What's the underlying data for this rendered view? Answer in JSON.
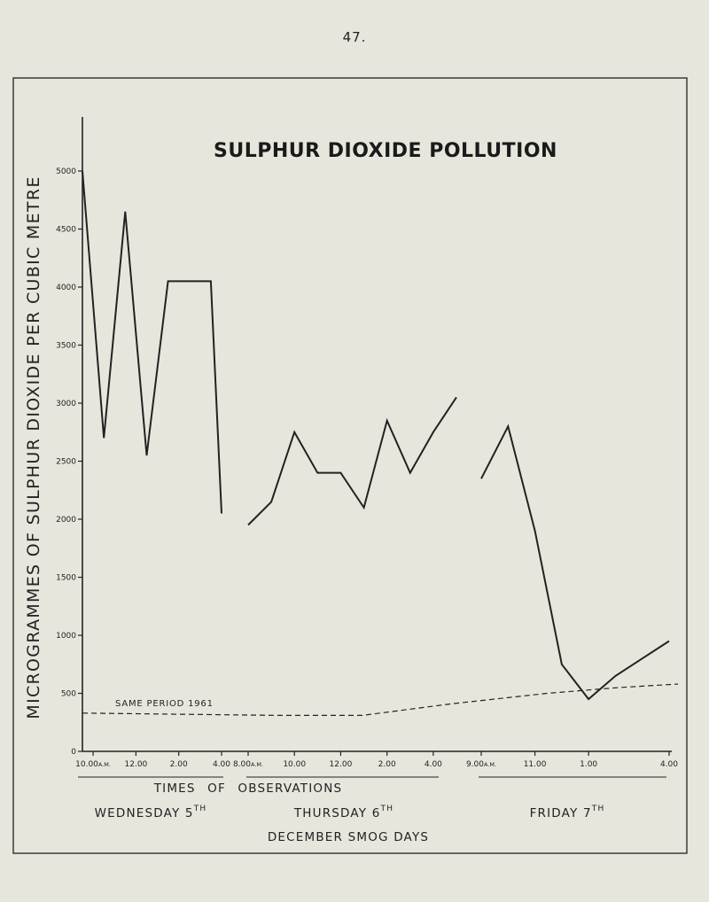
{
  "page_number": "47.",
  "chart_data": {
    "type": "line",
    "title": "SULPHUR DIOXIDE POLLUTION",
    "ylabel": "MICROGRAMMES OF SULPHUR DIOXIDE PER CUBIC METRE",
    "xlabel": "TIMES OF OBSERVATIONS",
    "footer": "DECEMBER SMOG DAYS",
    "ylim": [
      0,
      5000
    ],
    "yticks": [
      "5000",
      "4500",
      "4000",
      "3500",
      "3000",
      "2500",
      "2000",
      "1500",
      "1000",
      "500",
      "0"
    ],
    "xticks": [
      "10.00A.M.",
      "12.00",
      "2.00",
      "4.00",
      "8.00A.M.",
      "10.00",
      "12.00",
      "2.00",
      "4.00",
      "9.00A.M.",
      "11.00",
      "1.00",
      "4.00"
    ],
    "days": [
      {
        "label": "WEDNESDAY 5",
        "sup": "TH"
      },
      {
        "label": "THURSDAY 6",
        "sup": "TH"
      },
      {
        "label": "FRIDAY 7",
        "sup": "TH"
      }
    ],
    "grid": false,
    "series": [
      {
        "segments": [
          {
            "day": "WEDNESDAY 5TH",
            "x": [
              "09.30",
              "10.30",
              "11.30",
              "12.30",
              "13.30",
              "14.30",
              "15.30",
              "16.00"
            ],
            "y": [
              5000,
              2700,
              4650,
              2550,
              4050,
              4050,
              4050,
              2050
            ]
          },
          {
            "day": "THURSDAY 6TH",
            "x": [
              "08.00",
              "09.00",
              "10.00",
              "11.00",
              "12.00",
              "13.00",
              "14.00",
              "15.00",
              "16.00",
              "17.00"
            ],
            "y": [
              1950,
              2150,
              2750,
              2400,
              2400,
              2100,
              2850,
              2400,
              2750,
              3050
            ]
          },
          {
            "day": "FRIDAY 7TH",
            "x": [
              "09.00",
              "10.00",
              "11.00",
              "12.00",
              "13.00",
              "14.00",
              "15.00",
              "16.00"
            ],
            "y": [
              2350,
              2800,
              1900,
              750,
              450,
              650,
              800,
              950
            ]
          }
        ]
      },
      {
        "name": "SAME PERIOD 1961",
        "points": [
          [
            0.0,
            330
          ],
          [
            0.33,
            310
          ],
          [
            0.47,
            310
          ],
          [
            0.62,
            410
          ],
          [
            0.78,
            500
          ],
          [
            0.9,
            550
          ],
          [
            1.0,
            580
          ]
        ]
      }
    ]
  }
}
